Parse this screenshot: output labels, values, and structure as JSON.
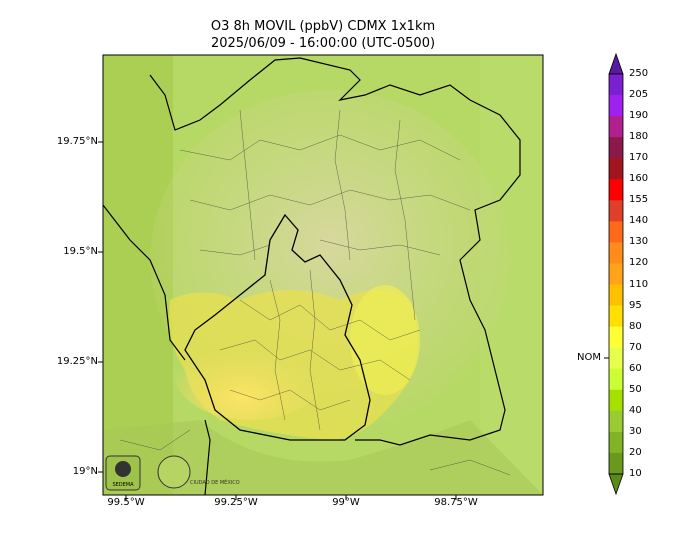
{
  "title": {
    "line1": "O3 8h MOVIL (ppbV) CDMX 1x1km",
    "line2": "2025/06/09 - 16:00:00 (UTC-0500)"
  },
  "map": {
    "lat_labels": [
      "19.75°N",
      "19.5°N",
      "19.25°N",
      "19°N"
    ],
    "lon_labels": [
      "99.5°W",
      "99.25°W",
      "99°W",
      "98.75°W"
    ],
    "logos": [
      "SEDEMA",
      "CIUDAD DE MÉXICO"
    ]
  },
  "colorbar": {
    "levels": [
      "250",
      "205",
      "190",
      "180",
      "170",
      "160",
      "155",
      "140",
      "130",
      "120",
      "110",
      "95",
      "80",
      "70",
      "60",
      "50",
      "40",
      "30",
      "20",
      "10"
    ],
    "colors": [
      "#7a1fd1",
      "#a020f0",
      "#b0208f",
      "#8b1a4a",
      "#a3151e",
      "#ff0000",
      "#e0402a",
      "#ff6a1a",
      "#ff8c1a",
      "#ffa31a",
      "#ffc000",
      "#ffe000",
      "#ffff33",
      "#e6ff4d",
      "#ccff33",
      "#a6e000",
      "#99cc33",
      "#80b326",
      "#6b991f",
      "#5a8a1a"
    ],
    "nom_label": "NOM"
  }
}
